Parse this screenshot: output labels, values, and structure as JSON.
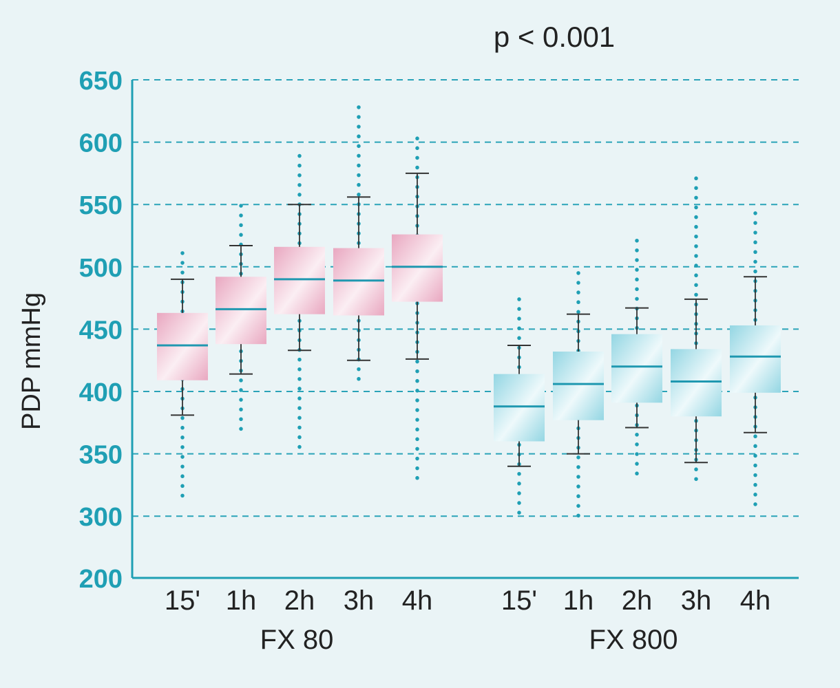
{
  "colors": {
    "background": "#eaf4f6",
    "axis": "#1f9fb4",
    "tick_label": "#1f9fb4",
    "grid": "#2aa3b8",
    "whisker": "#333333",
    "median": "#1f98b0",
    "dots": "#1f9fb4",
    "pink_light": "#fbeef3",
    "pink_dark": "#e9a7c0",
    "cyan_light": "#eef9fb",
    "cyan_dark": "#93d6e3"
  },
  "chart_data": {
    "type": "box",
    "annotation": "p < 0.001",
    "ylabel": "PDP mmHg",
    "yticks": [
      200,
      300,
      350,
      400,
      450,
      500,
      550,
      600,
      650
    ],
    "axis_break": [
      200,
      300
    ],
    "ylim": [
      200,
      650
    ],
    "grid": "dashed horizontal",
    "groups": [
      {
        "name": "FX 80",
        "fill": "pink",
        "boxes": [
          {
            "label": "15'",
            "whisker_low": 381,
            "q1": 409,
            "median": 437,
            "q3": 463,
            "whisker_high": 490,
            "dots_low": 313,
            "dots_high": 511
          },
          {
            "label": "1h",
            "whisker_low": 414,
            "q1": 438,
            "median": 466,
            "q3": 492,
            "whisker_high": 517,
            "dots_low": 369,
            "dots_high": 549
          },
          {
            "label": "2h",
            "whisker_low": 433,
            "q1": 462,
            "median": 490,
            "q3": 516,
            "whisker_high": 550,
            "dots_low": 349,
            "dots_high": 589
          },
          {
            "label": "3h",
            "whisker_low": 425,
            "q1": 461,
            "median": 489,
            "q3": 515,
            "whisker_high": 556,
            "dots_low": 405,
            "dots_high": 628
          },
          {
            "label": "4h",
            "whisker_low": 426,
            "q1": 472,
            "median": 500,
            "q3": 526,
            "whisker_high": 575,
            "dots_low": 326,
            "dots_high": 603
          }
        ]
      },
      {
        "name": "FX 800",
        "fill": "cyan",
        "boxes": [
          {
            "label": "15'",
            "whisker_low": 340,
            "q1": 360,
            "median": 388,
            "q3": 414,
            "whisker_high": 437,
            "dots_low": 293,
            "dots_high": 474
          },
          {
            "label": "1h",
            "whisker_low": 350,
            "q1": 377,
            "median": 406,
            "q3": 432,
            "whisker_high": 462,
            "dots_low": 288,
            "dots_high": 495
          },
          {
            "label": "2h",
            "whisker_low": 371,
            "q1": 391,
            "median": 420,
            "q3": 446,
            "whisker_high": 467,
            "dots_low": 333,
            "dots_high": 521
          },
          {
            "label": "3h",
            "whisker_low": 343,
            "q1": 380,
            "median": 408,
            "q3": 434,
            "whisker_high": 474,
            "dots_low": 329,
            "dots_high": 571
          },
          {
            "label": "4h",
            "whisker_low": 367,
            "q1": 399,
            "median": 428,
            "q3": 453,
            "whisker_high": 492,
            "dots_low": 303,
            "dots_high": 543
          }
        ]
      }
    ]
  }
}
